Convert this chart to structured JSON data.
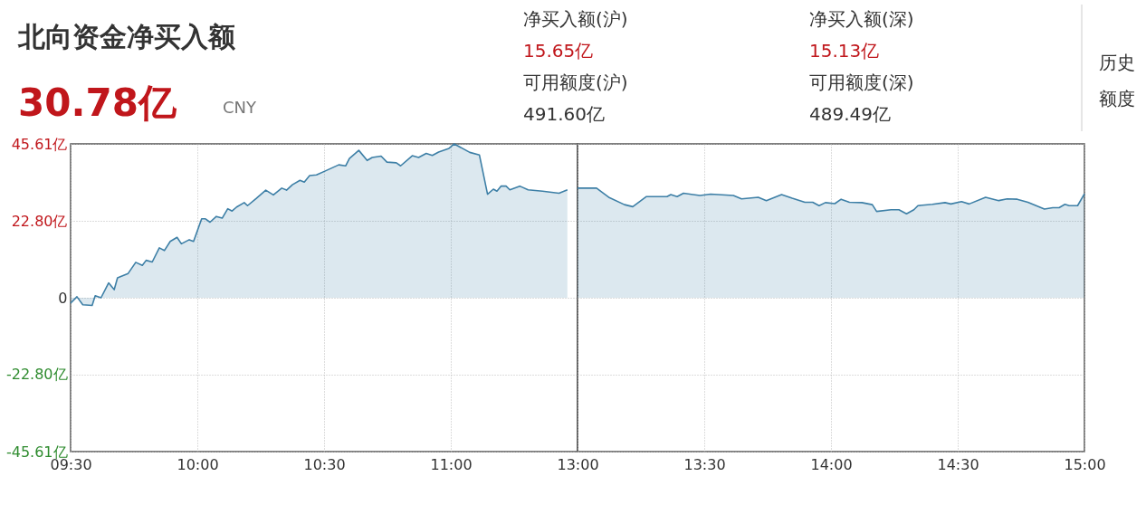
{
  "chart_data": [
    {
      "type": "area",
      "title": "北向资金净买入额",
      "annotations": [
        "30.78亿",
        "CNY",
        "净买入额(沪)",
        "15.65亿",
        "可用额度(沪)",
        "491.60亿",
        "净买入额(深)",
        "15.13亿",
        "可用额度(深)",
        "489.49亿",
        "历史额度"
      ],
      "xlim": [
        9.5,
        11.5
      ],
      "xticks": [
        {
          "value": 9.5,
          "label": "09:30"
        },
        {
          "value": 10,
          "label": "10:00"
        },
        {
          "value": 10.5,
          "label": "10:30"
        },
        {
          "value": 11,
          "label": "11:00"
        }
      ],
      "ylim": [
        -45.61,
        45.61
      ],
      "yticks": [
        {
          "value": -45.61,
          "label": "-45.61亿"
        },
        {
          "value": -22.8,
          "label": "-22.80亿"
        },
        0,
        {
          "value": 22.8,
          "label": "22.80亿"
        },
        {
          "value": 45.61,
          "label": "45.61亿"
        }
      ],
      "grid": true,
      "series": [
        {
          "color": "#3d7fa6",
          "x": [
            9.5,
            9.525,
            9.548,
            9.585,
            9.597,
            9.62,
            9.65,
            9.672,
            9.685,
            9.727,
            9.757,
            9.783,
            9.798,
            9.822,
            9.85,
            9.87,
            9.893,
            9.92,
            9.937,
            9.968,
            9.985,
            10.017,
            10.032,
            10.05,
            10.075,
            10.098,
            10.12,
            10.137,
            10.155,
            10.185,
            10.198,
            10.232,
            10.27,
            10.3,
            10.333,
            10.352,
            10.375,
            10.405,
            10.422,
            10.443,
            10.47,
            10.505,
            10.558,
            10.585,
            10.6,
            10.637,
            10.67,
            10.69,
            10.725,
            10.748,
            10.785,
            10.802,
            10.848,
            10.873,
            10.903,
            10.927,
            10.952,
            10.993,
            11.013,
            11.075,
            11.113,
            11.145,
            11.168,
            11.182,
            11.198,
            11.218,
            11.233,
            11.272,
            11.305,
            11.362,
            11.427,
            11.46
          ],
          "values": [
            -1.6,
            0.3,
            -2.1,
            -2.3,
            0.6,
            0,
            4.4,
            2.4,
            5.9,
            7.2,
            10.5,
            9.6,
            11.1,
            10.6,
            14.8,
            14.0,
            16.7,
            17.9,
            16.0,
            17.2,
            16.7,
            23.4,
            23.4,
            22.4,
            24.1,
            23.6,
            26.4,
            25.7,
            26.9,
            28.2,
            27.3,
            29.4,
            31.9,
            30.5,
            32.5,
            31.9,
            33.5,
            34.8,
            34.3,
            36.2,
            36.4,
            37.6,
            39.4,
            39.1,
            41.3,
            43.7,
            40.7,
            41.6,
            42.0,
            40.2,
            40.0,
            39.1,
            42.1,
            41.6,
            42.8,
            42.2,
            43.2,
            44.3,
            45.6,
            43.1,
            42.3,
            30.7,
            32.2,
            31.6,
            33.1,
            33.1,
            32.0,
            33.1,
            32.0,
            31.6,
            31.0,
            32.0
          ]
        }
      ]
    },
    {
      "type": "area",
      "xlim": [
        13,
        15
      ],
      "xticks": [
        {
          "value": 13,
          "label": "13:00"
        },
        {
          "value": 13.5,
          "label": "13:30"
        },
        {
          "value": 14,
          "label": "14:00"
        },
        {
          "value": 14.5,
          "label": "14:30"
        },
        {
          "value": 15,
          "label": "15:00"
        }
      ],
      "ylim": [
        -45.61,
        45.61
      ],
      "yticks": [
        {
          "value": -45.61,
          "label": null
        },
        {
          "value": -22.8,
          "label": null
        },
        {
          "value": 0,
          "label": null
        },
        {
          "value": 22.8,
          "label": null
        },
        {
          "value": 45.61,
          "label": null
        }
      ],
      "tick_labels": "x",
      "grid": true,
      "series": [
        {
          "color": "#3d7fa6",
          "x": [
            13.0,
            13.075,
            13.123,
            13.185,
            13.218,
            13.272,
            13.353,
            13.368,
            13.393,
            13.418,
            13.483,
            13.525,
            13.615,
            13.647,
            13.713,
            13.745,
            13.805,
            13.847,
            13.897,
            13.928,
            13.953,
            13.978,
            14.015,
            14.04,
            14.073,
            14.122,
            14.163,
            14.18,
            14.237,
            14.268,
            14.298,
            14.327,
            14.343,
            14.4,
            14.45,
            14.473,
            14.515,
            14.545,
            14.61,
            14.662,
            14.695,
            14.735,
            14.777,
            14.842,
            14.875,
            14.9,
            14.923,
            14.94,
            14.973,
            15
          ],
          "values": [
            32.5,
            32.5,
            29.8,
            27.6,
            27.0,
            30.0,
            30.0,
            30.6,
            30.0,
            31.0,
            30.3,
            30.7,
            30.3,
            29.3,
            29.8,
            28.8,
            30.6,
            29.5,
            28.3,
            28.3,
            27.3,
            28.2,
            27.9,
            29.2,
            28.3,
            28.2,
            27.6,
            25.6,
            26.1,
            26.1,
            24.9,
            26.1,
            27.3,
            27.7,
            28.2,
            27.8,
            28.5,
            27.8,
            29.8,
            28.8,
            29.3,
            29.2,
            28.3,
            26.3,
            26.7,
            26.7,
            27.7,
            27.3,
            27.3,
            30.8
          ]
        }
      ]
    }
  ]
}
